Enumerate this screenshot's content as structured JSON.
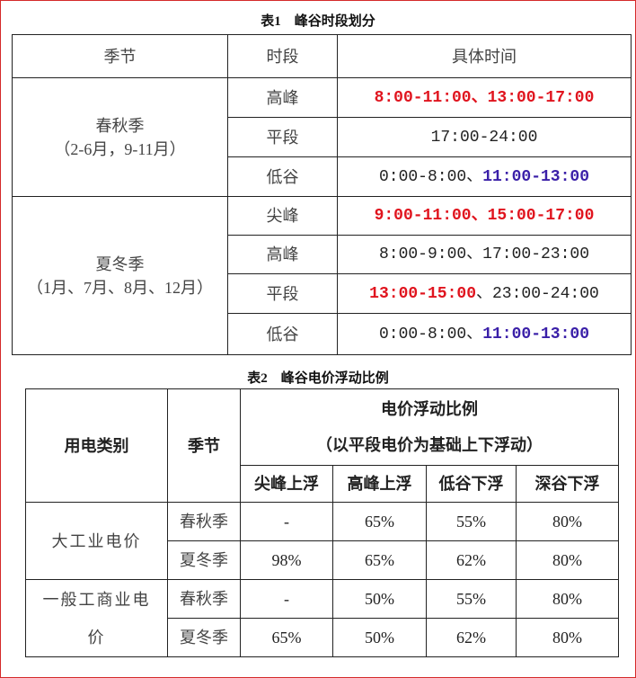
{
  "table1": {
    "title": "表1　峰谷时段划分",
    "headers": [
      "季节",
      "时段",
      "具体时间"
    ],
    "groups": [
      {
        "season": "春秋季",
        "months": "（2-6月，9-11月）",
        "rows": [
          {
            "period": "高峰",
            "time": [
              {
                "text": "8:00-11:00、13:00-17:00",
                "color": "#e0141e",
                "bold": true
              }
            ]
          },
          {
            "period": "平段",
            "time": [
              {
                "text": "17:00-24:00",
                "color": "#222222",
                "bold": false
              }
            ]
          },
          {
            "period": "低谷",
            "time": [
              {
                "text": "0:00-8:00、",
                "color": "#222222",
                "bold": false
              },
              {
                "text": "11:00-13:00",
                "color": "#3a1fa8",
                "bold": true
              }
            ]
          }
        ]
      },
      {
        "season": "夏冬季",
        "months": "（1月、7月、8月、12月）",
        "rows": [
          {
            "period": "尖峰",
            "time": [
              {
                "text": "9:00-11:00、15:00-17:00",
                "color": "#e0141e",
                "bold": true
              }
            ]
          },
          {
            "period": "高峰",
            "time": [
              {
                "text": "8:00-9:00、17:00-23:00",
                "color": "#222222",
                "bold": false
              }
            ]
          },
          {
            "period": "平段",
            "time": [
              {
                "text": "13:00-15:00",
                "color": "#e0141e",
                "bold": true
              },
              {
                "text": "、23:00-24:00",
                "color": "#222222",
                "bold": false
              }
            ]
          },
          {
            "period": "低谷",
            "time": [
              {
                "text": "0:00-8:00、",
                "color": "#222222",
                "bold": false
              },
              {
                "text": "11:00-13:00",
                "color": "#3a1fa8",
                "bold": true
              }
            ]
          }
        ]
      }
    ]
  },
  "table2": {
    "title": "表2　峰谷电价浮动比例",
    "header_category": "用电类别",
    "header_season": "季节",
    "header_ratio": "电价浮动比例",
    "header_ratio_note": "（以平段电价为基础上下浮动）",
    "sub_headers": [
      "尖峰上浮",
      "高峰上浮",
      "低谷下浮",
      "深谷下浮"
    ],
    "groups": [
      {
        "category": "大工业电价",
        "rows": [
          {
            "season": "春秋季",
            "values": [
              "-",
              "65%",
              "55%",
              "80%"
            ]
          },
          {
            "season": "夏冬季",
            "values": [
              "98%",
              "65%",
              "62%",
              "80%"
            ]
          }
        ]
      },
      {
        "category": "一般工商业电价",
        "rows": [
          {
            "season": "春秋季",
            "values": [
              "-",
              "50%",
              "55%",
              "80%"
            ]
          },
          {
            "season": "夏冬季",
            "values": [
              "65%",
              "50%",
              "62%",
              "80%"
            ]
          }
        ]
      }
    ]
  },
  "colors": {
    "peak_red": "#e0141e",
    "valley_blue": "#3a1fa8",
    "frame_border": "#d42a2a"
  }
}
